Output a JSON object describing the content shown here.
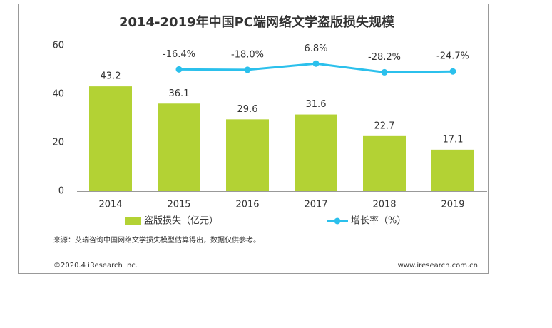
{
  "chart_data": {
    "type": "bar",
    "title": "2014-2019年中国PC端网络文学盗版损失规模",
    "categories": [
      "2014",
      "2015",
      "2016",
      "2017",
      "2018",
      "2019"
    ],
    "series": [
      {
        "name": "盗版损失（亿元）",
        "type": "bar",
        "color": "#b3d234",
        "values": [
          43.2,
          36.1,
          29.6,
          31.6,
          22.7,
          17.1
        ]
      },
      {
        "name": "增长率（%）",
        "type": "line",
        "axis": "y2",
        "color": "#2bc0ec",
        "values": [
          null,
          -16.4,
          -18.0,
          6.8,
          -28.2,
          -24.7
        ],
        "value_labels": [
          null,
          "-16.4%",
          "-18.0%",
          "6.8%",
          "-28.2%",
          "-24.7%"
        ]
      }
    ],
    "ylim": [
      0,
      60
    ],
    "yticks": [
      0,
      20,
      40,
      60
    ],
    "y2lim": [
      -510,
      80
    ],
    "legend": "bottom",
    "source": "来源：艾瑞咨询中国网络文学损失模型估算得出，数据仅供参考。",
    "copyright": "©2020.4 iResearch Inc.",
    "website": "www.iresearch.com.cn"
  }
}
